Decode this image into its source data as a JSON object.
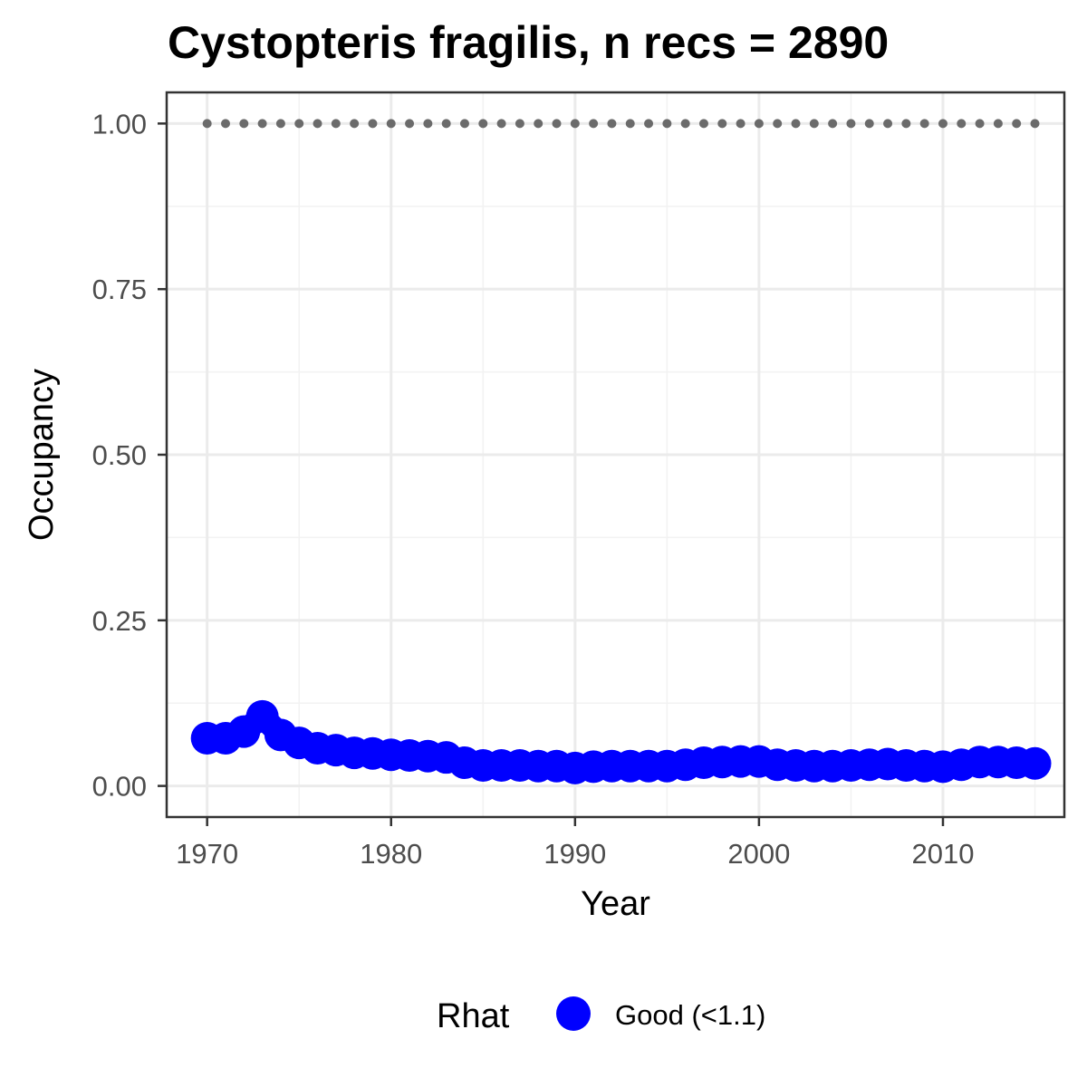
{
  "chart_data": {
    "type": "line",
    "title": "Cystopteris fragilis, n recs = 2890",
    "xlabel": "Year",
    "ylabel": "Occupancy",
    "xlim": [
      1967.8,
      2016.6
    ],
    "ylim": [
      -0.047,
      1.047
    ],
    "x_ticks": [
      1970,
      1980,
      1990,
      2000,
      2010
    ],
    "x_tick_labels": [
      "1970",
      "1980",
      "1990",
      "2000",
      "2010"
    ],
    "y_ticks": [
      0,
      0.25,
      0.5,
      0.75,
      1
    ],
    "y_tick_labels": [
      "0.00",
      "0.25",
      "0.50",
      "0.75",
      "1.00"
    ],
    "grid": true,
    "legend": {
      "position": "bottom",
      "title": "Rhat",
      "entries": [
        {
          "label": "Good (<1.1)",
          "color": "#0000ff"
        }
      ]
    },
    "colors": {
      "occupancy": "#0000ff",
      "ci_band": "#bebebe",
      "reference_line": "#6b6b6b",
      "panel_border": "#333333",
      "grid_major": "#ebebeb",
      "grid_minor": "#f2f2f2"
    },
    "x": [
      1970,
      1971,
      1972,
      1973,
      1974,
      1975,
      1976,
      1977,
      1978,
      1979,
      1980,
      1981,
      1982,
      1983,
      1984,
      1985,
      1986,
      1987,
      1988,
      1989,
      1990,
      1991,
      1992,
      1993,
      1994,
      1995,
      1996,
      1997,
      1998,
      1999,
      2000,
      2001,
      2002,
      2003,
      2004,
      2005,
      2006,
      2007,
      2008,
      2009,
      2010,
      2011,
      2012,
      2013,
      2014,
      2015
    ],
    "series": [
      {
        "name": "Good (<1.1)",
        "values": [
          0.072,
          0.072,
          0.082,
          0.105,
          0.077,
          0.065,
          0.057,
          0.054,
          0.05,
          0.049,
          0.047,
          0.046,
          0.045,
          0.043,
          0.035,
          0.031,
          0.031,
          0.031,
          0.03,
          0.03,
          0.027,
          0.029,
          0.03,
          0.03,
          0.03,
          0.03,
          0.032,
          0.035,
          0.036,
          0.037,
          0.037,
          0.032,
          0.031,
          0.03,
          0.03,
          0.031,
          0.032,
          0.033,
          0.031,
          0.03,
          0.029,
          0.032,
          0.036,
          0.036,
          0.035,
          0.034
        ]
      }
    ],
    "reference_series": {
      "values": [
        1,
        1,
        1,
        1,
        1,
        1,
        1,
        1,
        1,
        1,
        1,
        1,
        1,
        1,
        1,
        1,
        1,
        1,
        1,
        1,
        1,
        1,
        1,
        1,
        1,
        1,
        1,
        1,
        1,
        1,
        1,
        1,
        1,
        1,
        1,
        1,
        1,
        1,
        1,
        1,
        1,
        1,
        1,
        1,
        1,
        1
      ],
      "style": "dotted"
    },
    "ci_lower": [
      0.06,
      0.062,
      0.07,
      0.09,
      0.066,
      0.055,
      0.048,
      0.045,
      0.042,
      0.041,
      0.039,
      0.038,
      0.037,
      0.035,
      0.028,
      0.025,
      0.025,
      0.025,
      0.024,
      0.024,
      0.021,
      0.023,
      0.024,
      0.024,
      0.024,
      0.024,
      0.026,
      0.029,
      0.03,
      0.031,
      0.031,
      0.026,
      0.025,
      0.024,
      0.024,
      0.025,
      0.026,
      0.027,
      0.025,
      0.024,
      0.023,
      0.026,
      0.03,
      0.03,
      0.029,
      0.028
    ],
    "ci_upper": [
      0.09,
      0.088,
      0.098,
      0.12,
      0.092,
      0.078,
      0.068,
      0.064,
      0.059,
      0.058,
      0.056,
      0.055,
      0.054,
      0.052,
      0.043,
      0.038,
      0.038,
      0.038,
      0.037,
      0.037,
      0.034,
      0.036,
      0.037,
      0.037,
      0.037,
      0.037,
      0.039,
      0.042,
      0.043,
      0.044,
      0.044,
      0.039,
      0.038,
      0.037,
      0.037,
      0.038,
      0.039,
      0.04,
      0.038,
      0.037,
      0.036,
      0.039,
      0.043,
      0.043,
      0.042,
      0.041
    ]
  }
}
